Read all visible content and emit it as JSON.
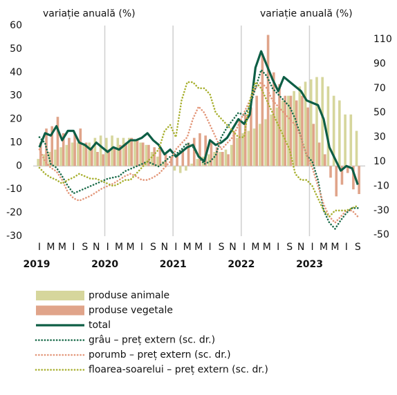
{
  "chart_data": {
    "type": "bar-line",
    "y_label": "variație anuală (%)",
    "y2_label": "variație anuală (%)",
    "categories": [
      "I",
      null,
      "M",
      null,
      "M",
      null,
      "I",
      null,
      "S",
      null,
      "N",
      null,
      "I",
      null,
      "M",
      null,
      "M",
      null,
      "I",
      null,
      "S",
      null,
      "N",
      null,
      "I",
      null,
      "M",
      null,
      "M",
      null,
      "I",
      null,
      "S",
      null,
      "N",
      null,
      "I",
      null,
      "M",
      null,
      "M",
      null,
      "I",
      null,
      "S",
      null,
      "N",
      null,
      "I",
      null,
      "M",
      null,
      "M",
      null,
      "I",
      null,
      "S"
    ],
    "years": [
      "2019",
      "2020",
      "2021",
      "2022",
      "2023"
    ],
    "ylim": [
      -30,
      60
    ],
    "yticks": [
      -30,
      -20,
      -10,
      0,
      10,
      20,
      30,
      40,
      50,
      60
    ],
    "y2lim": [
      -51,
      121.3
    ],
    "y2ticks": [
      -50,
      -30,
      -10,
      10,
      30,
      50,
      70,
      90,
      110
    ],
    "series": [
      {
        "name": "produse animale",
        "kind": "bar",
        "color": "#d6d69c",
        "values": [
          3,
          5,
          6,
          7,
          8,
          9,
          10,
          10,
          9,
          10,
          12,
          13,
          12,
          13,
          12,
          12,
          12,
          11,
          10,
          9,
          6,
          4,
          2,
          0,
          -2,
          -3,
          -2,
          1,
          3,
          4,
          5,
          6,
          6,
          7,
          9,
          12,
          14,
          15,
          16,
          18,
          20,
          22,
          25,
          28,
          30,
          32,
          34,
          36,
          37,
          38,
          38,
          34,
          30,
          28,
          22,
          22,
          15
        ]
      },
      {
        "name": "produse vegetale",
        "kind": "bar",
        "color": "#e0a48a",
        "values": [
          10,
          16,
          17,
          21,
          14,
          12,
          14,
          16,
          10,
          8,
          6,
          5,
          7,
          8,
          9,
          10,
          12,
          11,
          10,
          9,
          8,
          7,
          5,
          4,
          5,
          7,
          10,
          12,
          14,
          13,
          10,
          8,
          6,
          5,
          15,
          20,
          22,
          25,
          30,
          48,
          56,
          40,
          35,
          30,
          30,
          28,
          30,
          25,
          18,
          10,
          5,
          -5,
          -13,
          -8,
          -3,
          -10,
          -12
        ]
      },
      {
        "name": "total",
        "kind": "line",
        "color": "#0d5e45",
        "values": [
          8,
          14,
          13,
          17,
          11,
          15,
          15,
          10,
          9,
          7,
          10,
          8,
          6,
          8,
          7,
          9,
          11,
          11,
          12,
          14,
          11,
          9,
          5,
          7,
          4,
          6,
          8,
          9,
          4,
          2,
          11,
          9,
          10,
          12,
          16,
          20,
          18,
          22,
          42,
          49,
          43,
          37,
          32,
          38,
          36,
          34,
          32,
          28,
          27,
          26,
          20,
          8,
          3,
          -2,
          0,
          -1,
          -8
        ]
      },
      {
        "name": "grâu – preț extern (sc. dr.)",
        "kind": "dotted",
        "axis": "y2",
        "color": "#1a6b4a",
        "values": [
          30,
          25,
          8,
          5,
          -2,
          -10,
          -16,
          -14,
          -12,
          -10,
          -8,
          -6,
          -4,
          -3,
          -2,
          2,
          4,
          6,
          8,
          10,
          8,
          6,
          10,
          14,
          16,
          20,
          25,
          22,
          14,
          8,
          10,
          15,
          30,
          38,
          44,
          50,
          48,
          55,
          70,
          85,
          80,
          70,
          65,
          60,
          55,
          45,
          30,
          15,
          10,
          -5,
          -30,
          -40,
          -45,
          -38,
          -32,
          -28,
          -28
        ]
      },
      {
        "name": "porumb – preț extern (sc. dr.)",
        "kind": "dotted",
        "axis": "y2",
        "color": "#e3977a",
        "values": [
          20,
          10,
          5,
          2,
          -5,
          -15,
          -20,
          -22,
          -20,
          -18,
          -15,
          -12,
          -10,
          -8,
          -5,
          -2,
          0,
          -2,
          -5,
          -5,
          -3,
          0,
          5,
          10,
          20,
          25,
          30,
          45,
          55,
          50,
          40,
          30,
          20,
          25,
          30,
          40,
          50,
          60,
          70,
          75,
          70,
          60,
          55,
          50,
          45,
          40,
          30,
          15,
          5,
          -10,
          -25,
          -35,
          -40,
          -35,
          -30,
          -30,
          -35
        ]
      },
      {
        "name": "floarea-soarelui – preț extern (sc. dr.)",
        "kind": "dotted",
        "axis": "y2",
        "color": "#a8b030",
        "values": [
          5,
          0,
          -3,
          -5,
          -8,
          -5,
          -3,
          0,
          -2,
          -4,
          -4,
          -6,
          -8,
          -10,
          -8,
          -5,
          -5,
          0,
          5,
          10,
          15,
          20,
          35,
          40,
          30,
          60,
          75,
          75,
          70,
          70,
          65,
          50,
          45,
          40,
          35,
          30,
          30,
          60,
          75,
          70,
          60,
          50,
          40,
          30,
          20,
          0,
          -5,
          -5,
          -10,
          -20,
          -30,
          -35,
          -30,
          -30,
          -30,
          -28,
          -26
        ]
      }
    ]
  }
}
